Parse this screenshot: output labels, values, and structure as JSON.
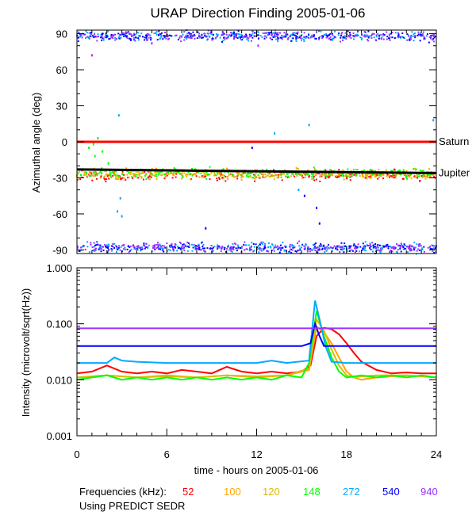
{
  "chart_data": [
    {
      "type": "scatter",
      "title": "URAP Direction Finding  2005-01-06",
      "ylabel": "Azimuthal angle (deg)",
      "xlim": [
        0,
        24
      ],
      "ylim": [
        -93,
        93
      ],
      "yticks": [
        90,
        60,
        30,
        0,
        -30,
        -60,
        -90
      ],
      "grid": false,
      "reference_lines": [
        {
          "label": "Saturn",
          "color": "#ff0000",
          "x": [
            0,
            24
          ],
          "y": [
            0,
            0
          ]
        },
        {
          "label": "Jupiter",
          "color": "#000000",
          "x": [
            0,
            24
          ],
          "y": [
            -23,
            -26
          ]
        }
      ],
      "series": [
        {
          "name": "52",
          "color": "#ff0000",
          "bands": [
            [
              0,
              24,
              -28,
              3
            ]
          ]
        },
        {
          "name": "100",
          "color": "#ffa500",
          "bands": [
            [
              0,
              24,
              -27,
              3
            ]
          ]
        },
        {
          "name": "120",
          "color": "#ddbb00",
          "bands": [
            [
              0,
              24,
              -27,
              3
            ]
          ]
        },
        {
          "name": "148",
          "color": "#00ff00",
          "bands": [
            [
              0,
              24,
              -26,
              3
            ]
          ],
          "points": [
            [
              0.8,
              -5
            ],
            [
              1.1,
              -2
            ],
            [
              1.4,
              3
            ],
            [
              1.7,
              -8
            ],
            [
              1.2,
              -12
            ],
            [
              2.1,
              -18
            ]
          ]
        },
        {
          "name": "272",
          "color": "#00aaff",
          "bands": [
            [
              0,
              24,
              88,
              3
            ],
            [
              0,
              24,
              -88,
              3
            ]
          ],
          "points": [
            [
              2.8,
              22
            ],
            [
              2.9,
              -47
            ],
            [
              2.7,
              -58
            ],
            [
              3.0,
              -62
            ],
            [
              13.2,
              7
            ],
            [
              15.5,
              14
            ],
            [
              23.8,
              18
            ],
            [
              14.8,
              -40
            ]
          ]
        },
        {
          "name": "540",
          "color": "#0000ff",
          "bands": [
            [
              0,
              24,
              -88,
              3
            ],
            [
              0,
              24,
              88,
              3
            ]
          ],
          "points": [
            [
              8.6,
              -72
            ],
            [
              16.0,
              -55
            ],
            [
              16.2,
              -68
            ],
            [
              15.2,
              -45
            ],
            [
              11.7,
              -5
            ]
          ]
        },
        {
          "name": "940",
          "color": "#9933ff",
          "bands": [
            [
              0,
              24,
              88,
              3
            ],
            [
              0,
              24,
              -88,
              3
            ]
          ],
          "points": [
            [
              1.0,
              72
            ],
            [
              5.0,
              82
            ],
            [
              12.1,
              80
            ]
          ]
        }
      ]
    },
    {
      "type": "line",
      "xlabel": "time - hours on 2005-01-06",
      "ylabel": "Intensity (microvolt/sqrt(Hz))",
      "xlim": [
        0,
        24
      ],
      "ylim": [
        0.001,
        1.0
      ],
      "yscale": "log",
      "yticks": [
        1.0,
        0.1,
        0.01,
        0.001
      ],
      "ytick_labels": [
        "1.000",
        "0.100",
        "0.010",
        "0.001"
      ],
      "xticks": [
        0,
        6,
        12,
        18,
        24
      ],
      "grid": false,
      "series": [
        {
          "name": "52",
          "color": "#ff0000",
          "x": [
            0,
            1,
            2,
            3,
            4,
            5,
            6,
            7,
            8,
            9,
            10,
            11,
            12,
            13,
            14,
            15,
            15.6,
            16,
            16.5,
            17,
            17.5,
            18,
            18.5,
            19,
            20,
            21,
            22,
            23,
            24
          ],
          "y": [
            0.013,
            0.014,
            0.018,
            0.014,
            0.013,
            0.014,
            0.013,
            0.015,
            0.014,
            0.013,
            0.017,
            0.014,
            0.013,
            0.014,
            0.013,
            0.014,
            0.018,
            0.06,
            0.085,
            0.08,
            0.065,
            0.045,
            0.03,
            0.021,
            0.015,
            0.013,
            0.0135,
            0.013,
            0.013
          ]
        },
        {
          "name": "100",
          "color": "#ffa500",
          "x": [
            0,
            2,
            4,
            6,
            8,
            10,
            12,
            14,
            15.5,
            16,
            16.5,
            17,
            17.5,
            18,
            18.5,
            19,
            20,
            22,
            24
          ],
          "y": [
            0.011,
            0.012,
            0.011,
            0.012,
            0.011,
            0.012,
            0.011,
            0.012,
            0.015,
            0.09,
            0.07,
            0.045,
            0.025,
            0.014,
            0.011,
            0.01,
            0.011,
            0.012,
            0.011
          ]
        },
        {
          "name": "120",
          "color": "#ddbb00",
          "x": [
            0,
            2,
            4,
            6,
            8,
            10,
            12,
            14,
            15.5,
            16,
            16.5,
            17,
            17.5,
            18,
            18.5,
            19,
            20,
            22,
            24
          ],
          "y": [
            0.011,
            0.012,
            0.011,
            0.0115,
            0.011,
            0.012,
            0.0115,
            0.012,
            0.016,
            0.12,
            0.075,
            0.035,
            0.018,
            0.012,
            0.011,
            0.0115,
            0.012,
            0.012,
            0.011
          ]
        },
        {
          "name": "148",
          "color": "#00ff00",
          "x": [
            0,
            1,
            2,
            3,
            4,
            5,
            6,
            7,
            8,
            9,
            10,
            11,
            12,
            13,
            14,
            15,
            15.5,
            16,
            16.5,
            17,
            17.5,
            18,
            19,
            20,
            21,
            22,
            23,
            24
          ],
          "y": [
            0.01,
            0.011,
            0.012,
            0.01,
            0.011,
            0.01,
            0.011,
            0.01,
            0.011,
            0.01,
            0.011,
            0.01,
            0.011,
            0.01,
            0.012,
            0.011,
            0.02,
            0.17,
            0.06,
            0.025,
            0.014,
            0.011,
            0.012,
            0.011,
            0.012,
            0.011,
            0.012,
            0.011
          ]
        },
        {
          "name": "272",
          "color": "#00aaff",
          "x": [
            0,
            2,
            2.5,
            3,
            4,
            6,
            12,
            13,
            14,
            15.5,
            15.9,
            16.2,
            16.6,
            17,
            18,
            24
          ],
          "y": [
            0.02,
            0.02,
            0.025,
            0.022,
            0.021,
            0.02,
            0.02,
            0.022,
            0.02,
            0.022,
            0.26,
            0.12,
            0.04,
            0.021,
            0.02,
            0.02
          ]
        },
        {
          "name": "540",
          "color": "#0000ff",
          "x": [
            0,
            15,
            15.6,
            15.9,
            16.2,
            16.5,
            17,
            24
          ],
          "y": [
            0.04,
            0.04,
            0.045,
            0.1,
            0.06,
            0.04,
            0.04,
            0.04
          ]
        },
        {
          "name": "940",
          "color": "#9933ff",
          "x": [
            0,
            24
          ],
          "y": [
            0.083,
            0.083
          ]
        }
      ]
    }
  ],
  "legend": {
    "label": "Frequencies (kHz):",
    "entries": [
      {
        "text": "52",
        "color": "#ff0000"
      },
      {
        "text": "100",
        "color": "#ffa500"
      },
      {
        "text": "120",
        "color": "#ddbb00"
      },
      {
        "text": "148",
        "color": "#00ff00"
      },
      {
        "text": "272",
        "color": "#00aaff"
      },
      {
        "text": "540",
        "color": "#0000ff"
      },
      {
        "text": "940",
        "color": "#9933ff"
      }
    ]
  },
  "footer_note": "Using PREDICT SEDR"
}
